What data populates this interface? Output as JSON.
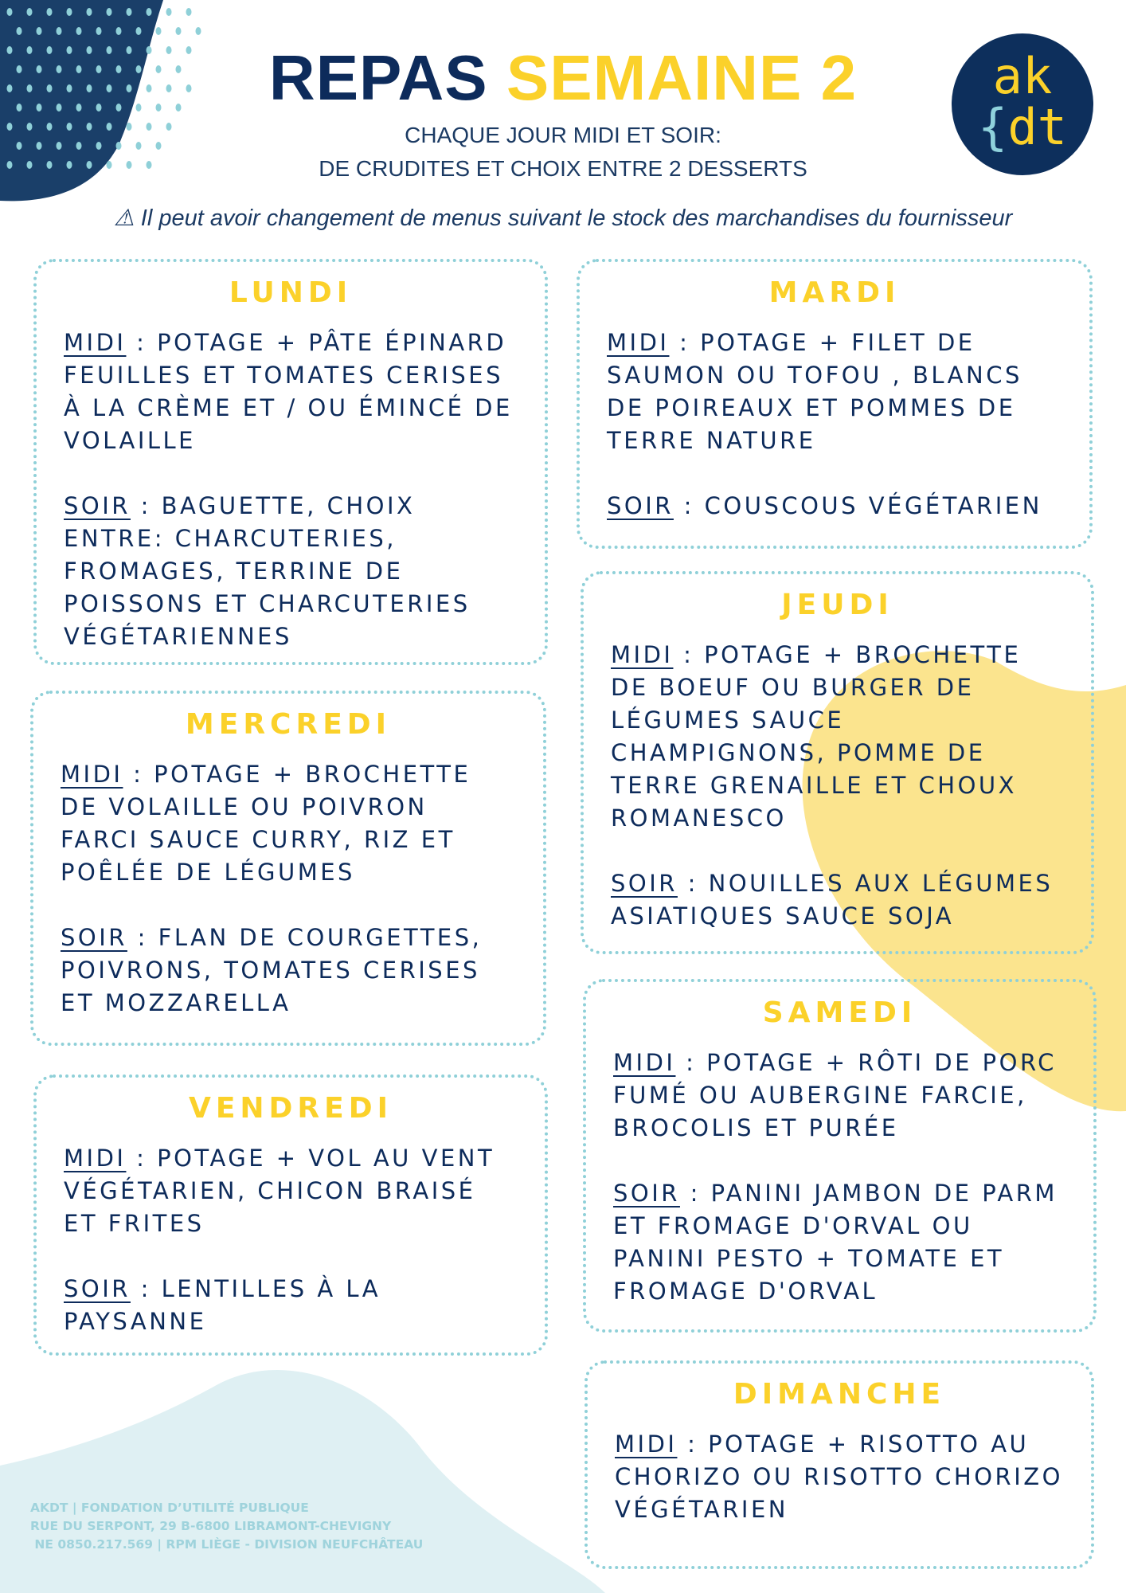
{
  "header": {
    "title_part1": "REPAS",
    "title_part2": "SEMAINE 2",
    "subtitle_line1": "CHAQUE JOUR MIDI ET SOIR:",
    "subtitle_line2": "DE CRUDITES ET CHOIX ENTRE 2 DESSERTS",
    "warning_icon": "warning-triangle-icon",
    "warning": "⚠ Il peut avoir changement de menus suivant le stock des marchandises du fournisseur"
  },
  "logo": {
    "line1": "ak",
    "line2_brace": "{",
    "line2": "dt"
  },
  "days": [
    {
      "name": "LUNDI",
      "midi_label": "MIDI",
      "midi": " : Potage + pâte épinard feuilles  et tomates cerises à la crème et / ou émincé de volaille",
      "soir_label": "SOIR",
      "soir": " : Baguette, choix entre: charcuteries, fromages, terrine de poissons et charcuteries végétariennes"
    },
    {
      "name": "MARDI",
      "midi_label": "MIDI",
      "midi": " : Potage + filet de saumon ou tofou , blancs de poireaux et pommes de terre nature",
      "soir_label": "SOIR",
      "soir": " : Couscous végétarien"
    },
    {
      "name": "MERCREDI",
      "midi_label": "MIDI",
      "midi": " : Potage + brochette de volaille ou poivron farci sauce curry, riz et poêlée de légumes",
      "soir_label": "SOIR",
      "soir": " : Flan de courgettes, poivrons, tomates cerises et mozzarella"
    },
    {
      "name": "JEUDI",
      "midi_label": "MIDI",
      "midi": " : Potage + brochette de boeuf ou burger de légumes sauce champignons, pomme de terre grenaille et choux romanesco",
      "soir_label": "SOIR",
      "soir": " : Nouilles aux légumes asiatiques sauce soja"
    },
    {
      "name": "VENDREDI",
      "midi_label": "MIDI",
      "midi": " : Potage + vol au vent végétarien, chicon braisé et frites",
      "soir_label": "SOIR",
      "soir": " : Lentilles à la paysanne"
    },
    {
      "name": "SAMEDI",
      "midi_label": "MIDI",
      "midi": " : Potage + rôti de porc fumé ou aubergine farcie, brocolis et purée",
      "soir_label": "SOIR",
      "soir": " : Panini jambon de parm et fromage d'Orval ou panini pesto + tomate et fromage d'Orval"
    },
    {
      "name": "DIMANCHE",
      "midi_label": "MIDI",
      "midi": " : Potage + risotto au chorizo ou risotto chorizo végétarien"
    }
  ],
  "footer": {
    "line1": "AKDT | FONDATION D’UTILITÉ PUBLIQUE",
    "line2": "RUE DU SERPONT, 29 B-6800 LIBRAMONT-CHEVIGNY",
    "line3": " NE 0850.217.569 | RPM LIÈGE - DIVISION NEUFCHÂTEAU"
  },
  "colors": {
    "navy": "#0d2b5b",
    "yellow": "#fbd12a",
    "light_blue": "#8fd0d8",
    "pale_yellow": "#fbe48e",
    "pale_blue": "#dff0f3"
  }
}
